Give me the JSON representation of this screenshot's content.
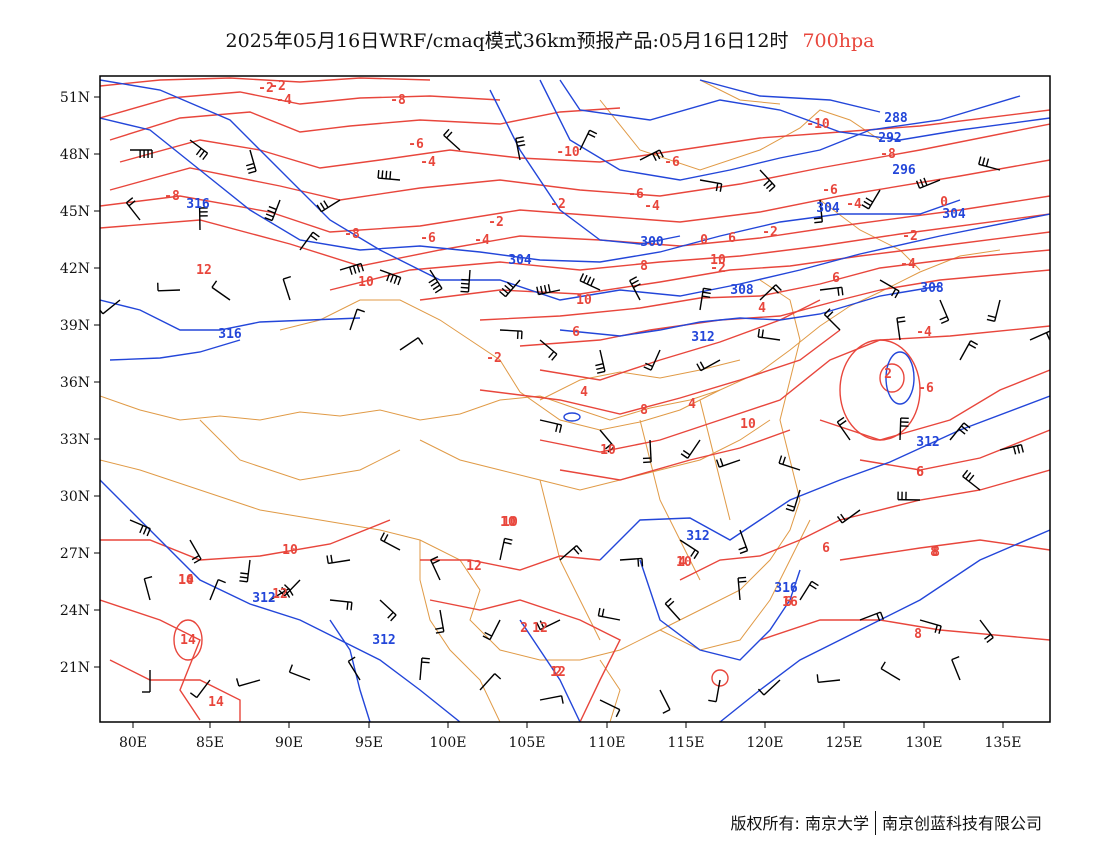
{
  "title": {
    "main": "2025年05月16日WRF/cmaq模式36km预报产品:05月16日12时",
    "level": "700hpa"
  },
  "map": {
    "lon_ticks": [
      "80E",
      "85E",
      "90E",
      "95E",
      "100E",
      "105E",
      "110E",
      "115E",
      "120E",
      "125E",
      "130E",
      "135E"
    ],
    "lat_ticks": [
      "51N",
      "48N",
      "45N",
      "42N",
      "39N",
      "36N",
      "33N",
      "30N",
      "27N",
      "24N",
      "21N"
    ],
    "colors": {
      "temperature": "#e8463c",
      "height": "#2346d9",
      "border": "#e09a46",
      "wind": "#000000"
    },
    "temp_labels": [
      "-2",
      "-4",
      "-2",
      "-8",
      "-6",
      "-4",
      "-10",
      "-10",
      "-6",
      "-8",
      "-6",
      "-4",
      "-6",
      "-2",
      "-8",
      "-2",
      "-6",
      "-4",
      "-8",
      "6",
      "-4",
      "-2",
      "0",
      "-2",
      "-4",
      "0",
      "-2",
      "8",
      "6",
      "4",
      "-4",
      "6",
      "2",
      "-6",
      "4",
      "8",
      "4",
      "12",
      "10",
      "10",
      "6",
      "-2",
      "8",
      "6",
      "10",
      "12",
      "10",
      "10",
      "4",
      "10",
      "2",
      "2",
      "10",
      "10",
      "8",
      "14",
      "6",
      "12",
      "10",
      "14",
      "12",
      "12",
      "10",
      "8",
      "6",
      "16",
      "14"
    ],
    "height_labels": [
      "288",
      "292",
      "296",
      "316",
      "300",
      "304",
      "308",
      "304",
      "304",
      "312",
      "316",
      "308",
      "312",
      "312",
      "316",
      "312",
      "312"
    ],
    "credit_left": "版权所有: 南京大学",
    "credit_right": "南京创蓝科技有限公司"
  }
}
